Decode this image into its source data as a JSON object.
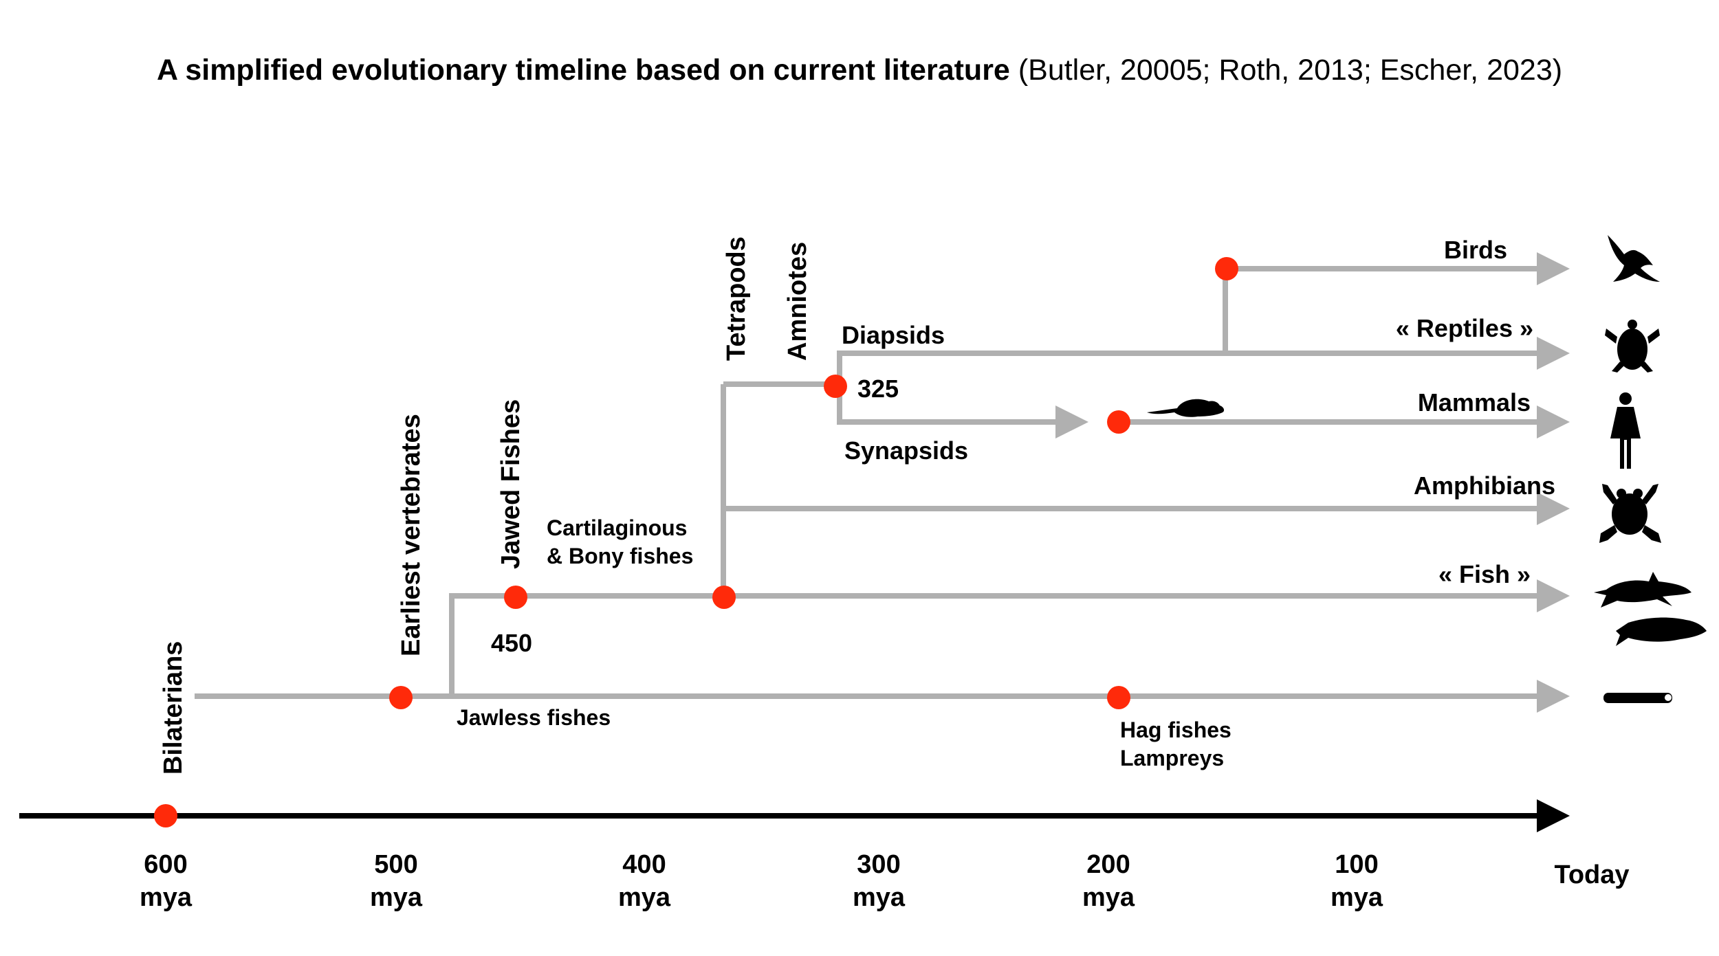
{
  "title": {
    "main": "A simplified evolutionary timeline based on current literature",
    "citation": "(Butler, 20005; Roth, 2013; Escher, 2023)"
  },
  "axis": {
    "ticks": [
      {
        "value": "600",
        "unit": "mya"
      },
      {
        "value": "500",
        "unit": "mya"
      },
      {
        "value": "400",
        "unit": "mya"
      },
      {
        "value": "300",
        "unit": "mya"
      },
      {
        "value": "200",
        "unit": "mya"
      },
      {
        "value": "100",
        "unit": "mya"
      }
    ],
    "end_label": "Today"
  },
  "events": {
    "bilaterians": "Bilaterians",
    "earliest_vertebrates": "Earliest vertebrates",
    "jawed_fishes": "Jawed Fishes",
    "tetrapods": "Tetrapods",
    "amniotes": "Amniotes"
  },
  "branches": {
    "jawless_fishes": "Jawless fishes",
    "cartilaginous_line1": "Cartilaginous",
    "cartilaginous_line2": "& Bony fishes",
    "diapsids": "Diapsids",
    "synapsids": "Synapsids",
    "hagfish_line1": "Hag fishes",
    "hagfish_line2": "Lampreys"
  },
  "dates": {
    "jawed": "450",
    "amniote": "325"
  },
  "lineages": {
    "birds": "Birds",
    "reptiles": "« Reptiles »",
    "mammals": "Mammals",
    "amphibians": "Amphibians",
    "fish": "« Fish »"
  },
  "icons": [
    "bird-icon",
    "turtle-icon",
    "human-icon",
    "frog-icon",
    "shark-icon",
    "trout-icon",
    "lamprey-icon",
    "rat-icon"
  ],
  "colors": {
    "node": "#ff2a0a",
    "branch": "#b0b0b0",
    "axis": "#000000"
  }
}
